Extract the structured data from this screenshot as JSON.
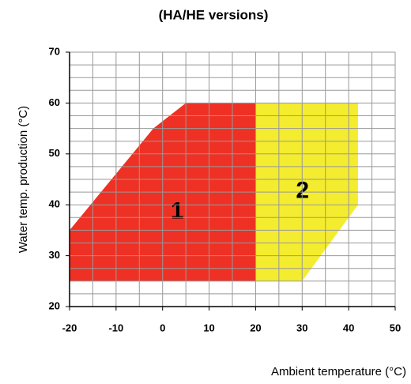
{
  "chart_data": {
    "type": "polygon",
    "title": "(HA/HE versions)",
    "x_label": "Ambient temperature (°C)",
    "y_label": "Water temp. production (°C)",
    "xlim": [
      -20,
      50
    ],
    "xticks": [
      -20,
      -10,
      0,
      10,
      20,
      30,
      40,
      50
    ],
    "ylim": [
      20,
      70
    ],
    "yticks": [
      20,
      30,
      40,
      50,
      60,
      70
    ],
    "grid": true,
    "minor_grid": {
      "x": 5,
      "y": 2.5
    },
    "series": [
      {
        "name": "1",
        "color": "#ee3124",
        "x": [
          -20,
          -20,
          -2,
          5,
          20,
          20
        ],
        "values": [
          25,
          35,
          55,
          60,
          60,
          25
        ]
      },
      {
        "name": "2",
        "color": "#f4ec2e",
        "x": [
          20,
          20,
          42,
          42,
          30
        ],
        "values": [
          25,
          60,
          60,
          40,
          25
        ]
      }
    ]
  }
}
